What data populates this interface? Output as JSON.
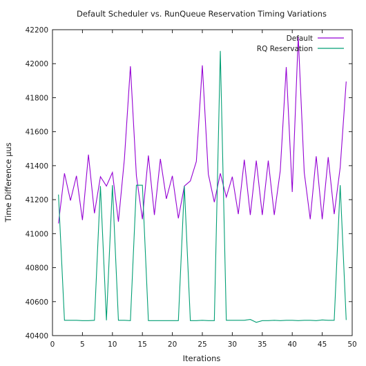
{
  "chart_data": {
    "type": "line",
    "title": "Default Scheduler vs. RunQueue Reservation Timing Variations",
    "xlabel": "Iterations",
    "ylabel": "Time Difference µus",
    "xlim": [
      0,
      50
    ],
    "ylim": [
      40400,
      42200
    ],
    "xticks": [
      0,
      5,
      10,
      15,
      20,
      25,
      30,
      35,
      40,
      45,
      50
    ],
    "yticks": [
      40400,
      40600,
      40800,
      41000,
      41200,
      41400,
      41600,
      41800,
      42000,
      42200
    ],
    "grid": false,
    "legend_position": "top-right",
    "x": [
      1,
      2,
      3,
      4,
      5,
      6,
      7,
      8,
      9,
      10,
      11,
      12,
      13,
      14,
      15,
      16,
      17,
      18,
      19,
      20,
      21,
      22,
      23,
      24,
      25,
      26,
      27,
      28,
      29,
      30,
      31,
      32,
      33,
      34,
      35,
      36,
      37,
      38,
      39,
      40,
      41,
      42,
      43,
      44,
      45,
      46,
      47,
      48,
      49
    ],
    "series": [
      {
        "name": "Default",
        "color": "#9400d3",
        "values": [
          41060,
          41355,
          41195,
          41340,
          41080,
          41465,
          41120,
          41335,
          41280,
          41360,
          41070,
          41440,
          41985,
          41340,
          41085,
          41460,
          41110,
          41440,
          41205,
          41340,
          41090,
          41280,
          41310,
          41425,
          41990,
          41350,
          41185,
          41355,
          41215,
          41335,
          41115,
          41435,
          41110,
          41430,
          41110,
          41430,
          41110,
          41370,
          41980,
          41245,
          42160,
          41360,
          41085,
          41455,
          41085,
          41450,
          41115,
          41390,
          41895
        ]
      },
      {
        "name": "RQ Reservation",
        "color": "#009e73",
        "values": [
          41230,
          40490,
          40490,
          40490,
          40488,
          40488,
          40490,
          41280,
          40490,
          41285,
          40490,
          40490,
          40488,
          41285,
          41285,
          40488,
          40488,
          40488,
          40488,
          40488,
          40488,
          41280,
          40488,
          40488,
          40490,
          40488,
          40488,
          42075,
          40490,
          40490,
          40490,
          40490,
          40495,
          40478,
          40488,
          40488,
          40490,
          40488,
          40490,
          40490,
          40488,
          40490,
          40490,
          40488,
          40492,
          40490,
          40490,
          41285,
          40492
        ]
      }
    ]
  }
}
